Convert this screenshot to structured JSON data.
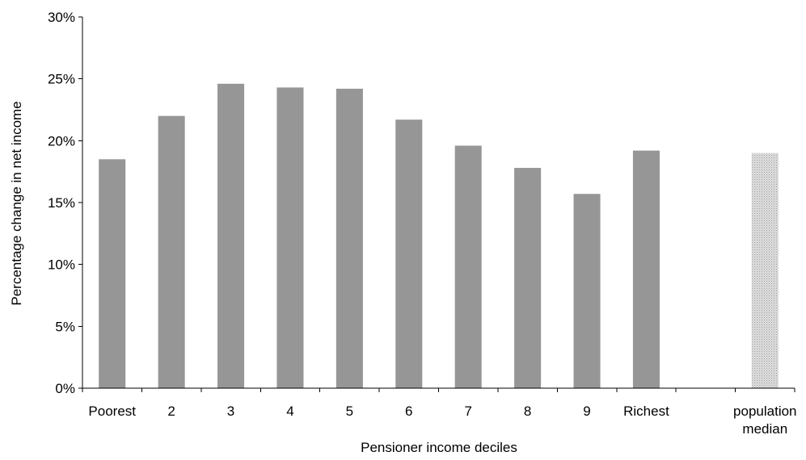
{
  "chart_data": {
    "type": "bar",
    "categories": [
      "Poorest",
      "2",
      "3",
      "4",
      "5",
      "6",
      "7",
      "8",
      "9",
      "Richest",
      "",
      "population median"
    ],
    "category_label_lines": [
      [
        "Poorest"
      ],
      [
        "2"
      ],
      [
        "3"
      ],
      [
        "4"
      ],
      [
        "5"
      ],
      [
        "6"
      ],
      [
        "7"
      ],
      [
        "8"
      ],
      [
        "9"
      ],
      [
        "Richest"
      ],
      [],
      [
        "population",
        "median"
      ]
    ],
    "values": [
      18.5,
      22.0,
      24.6,
      24.3,
      24.2,
      21.7,
      19.6,
      17.8,
      15.7,
      19.2,
      null,
      19.0
    ],
    "bar_styles": [
      "solid",
      "solid",
      "solid",
      "solid",
      "solid",
      "solid",
      "solid",
      "solid",
      "solid",
      "solid",
      "none",
      "dotted"
    ],
    "xlabel": "Pensioner income deciles",
    "ylabel": "Percentage change in net income",
    "ylim": [
      0,
      30
    ],
    "yticks": [
      0,
      5,
      10,
      15,
      20,
      25,
      30
    ],
    "ytick_labels": [
      "0%",
      "5%",
      "10%",
      "15%",
      "20%",
      "25%",
      "30%"
    ],
    "grid": false,
    "colors": {
      "bar": "#969696",
      "median_bar": "#c8c8c8",
      "axis": "#000000"
    }
  }
}
